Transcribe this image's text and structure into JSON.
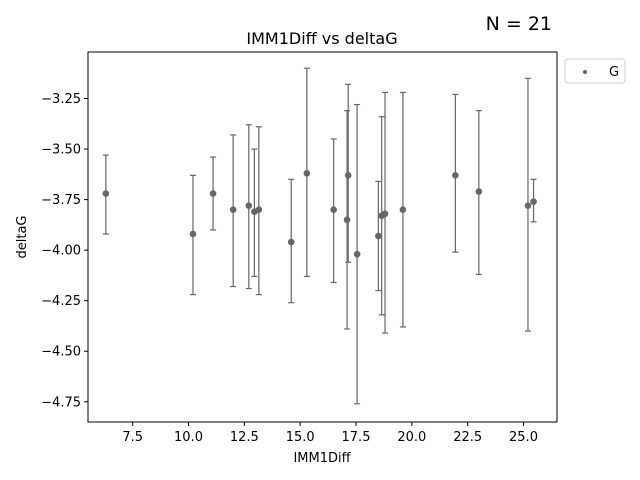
{
  "chart_data": {
    "type": "scatter",
    "title": "IMM1Diff vs deltaG",
    "annotation": "N = 21",
    "xlabel": "IMM1Diff",
    "ylabel": "deltaG",
    "xlim": [
      5.5,
      26.5
    ],
    "ylim": [
      -4.85,
      -3.02
    ],
    "xticks": [
      7.5,
      10.0,
      12.5,
      15.0,
      17.5,
      20.0,
      22.5,
      25.0
    ],
    "xtick_labels": [
      "7.5",
      "10.0",
      "12.5",
      "15.0",
      "17.5",
      "20.0",
      "22.5",
      "25.0"
    ],
    "yticks": [
      -4.75,
      -4.5,
      -4.25,
      -4.0,
      -3.75,
      -3.5,
      -3.25
    ],
    "ytick_labels": [
      "−4.75",
      "−4.50",
      "−4.25",
      "−4.00",
      "−3.75",
      "−3.50",
      "−3.25"
    ],
    "legend": {
      "position": "outside-top-right",
      "entries": [
        "G"
      ]
    },
    "color": "#666666",
    "grid": false,
    "series": [
      {
        "name": "G",
        "points": [
          {
            "x": 6.3,
            "y": -3.72,
            "yerr_low": -3.92,
            "yerr_high": -3.53
          },
          {
            "x": 10.2,
            "y": -3.92,
            "yerr_low": -4.22,
            "yerr_high": -3.63
          },
          {
            "x": 11.1,
            "y": -3.72,
            "yerr_low": -3.9,
            "yerr_high": -3.54
          },
          {
            "x": 12.0,
            "y": -3.8,
            "yerr_low": -4.18,
            "yerr_high": -3.43
          },
          {
            "x": 12.7,
            "y": -3.78,
            "yerr_low": -4.19,
            "yerr_high": -3.38
          },
          {
            "x": 12.95,
            "y": -3.81,
            "yerr_low": -4.13,
            "yerr_high": -3.5
          },
          {
            "x": 13.15,
            "y": -3.8,
            "yerr_low": -4.22,
            "yerr_high": -3.39
          },
          {
            "x": 14.6,
            "y": -3.96,
            "yerr_low": -4.26,
            "yerr_high": -3.65
          },
          {
            "x": 15.3,
            "y": -3.62,
            "yerr_low": -4.13,
            "yerr_high": -3.1
          },
          {
            "x": 16.5,
            "y": -3.8,
            "yerr_low": -4.16,
            "yerr_high": -3.45
          },
          {
            "x": 17.1,
            "y": -3.85,
            "yerr_low": -4.39,
            "yerr_high": -3.31
          },
          {
            "x": 17.15,
            "y": -3.63,
            "yerr_low": -4.06,
            "yerr_high": -3.18
          },
          {
            "x": 17.55,
            "y": -4.02,
            "yerr_low": -4.76,
            "yerr_high": -3.28
          },
          {
            "x": 18.5,
            "y": -3.93,
            "yerr_low": -4.2,
            "yerr_high": -3.66
          },
          {
            "x": 18.65,
            "y": -3.83,
            "yerr_low": -4.32,
            "yerr_high": -3.34
          },
          {
            "x": 18.8,
            "y": -3.82,
            "yerr_low": -4.41,
            "yerr_high": -3.22
          },
          {
            "x": 19.6,
            "y": -3.8,
            "yerr_low": -4.38,
            "yerr_high": -3.22
          },
          {
            "x": 21.95,
            "y": -3.63,
            "yerr_low": -4.01,
            "yerr_high": -3.23
          },
          {
            "x": 23.0,
            "y": -3.71,
            "yerr_low": -4.12,
            "yerr_high": -3.31
          },
          {
            "x": 25.2,
            "y": -3.78,
            "yerr_low": -4.4,
            "yerr_high": -3.15
          },
          {
            "x": 25.45,
            "y": -3.76,
            "yerr_low": -3.86,
            "yerr_high": -3.65
          }
        ]
      }
    ]
  }
}
